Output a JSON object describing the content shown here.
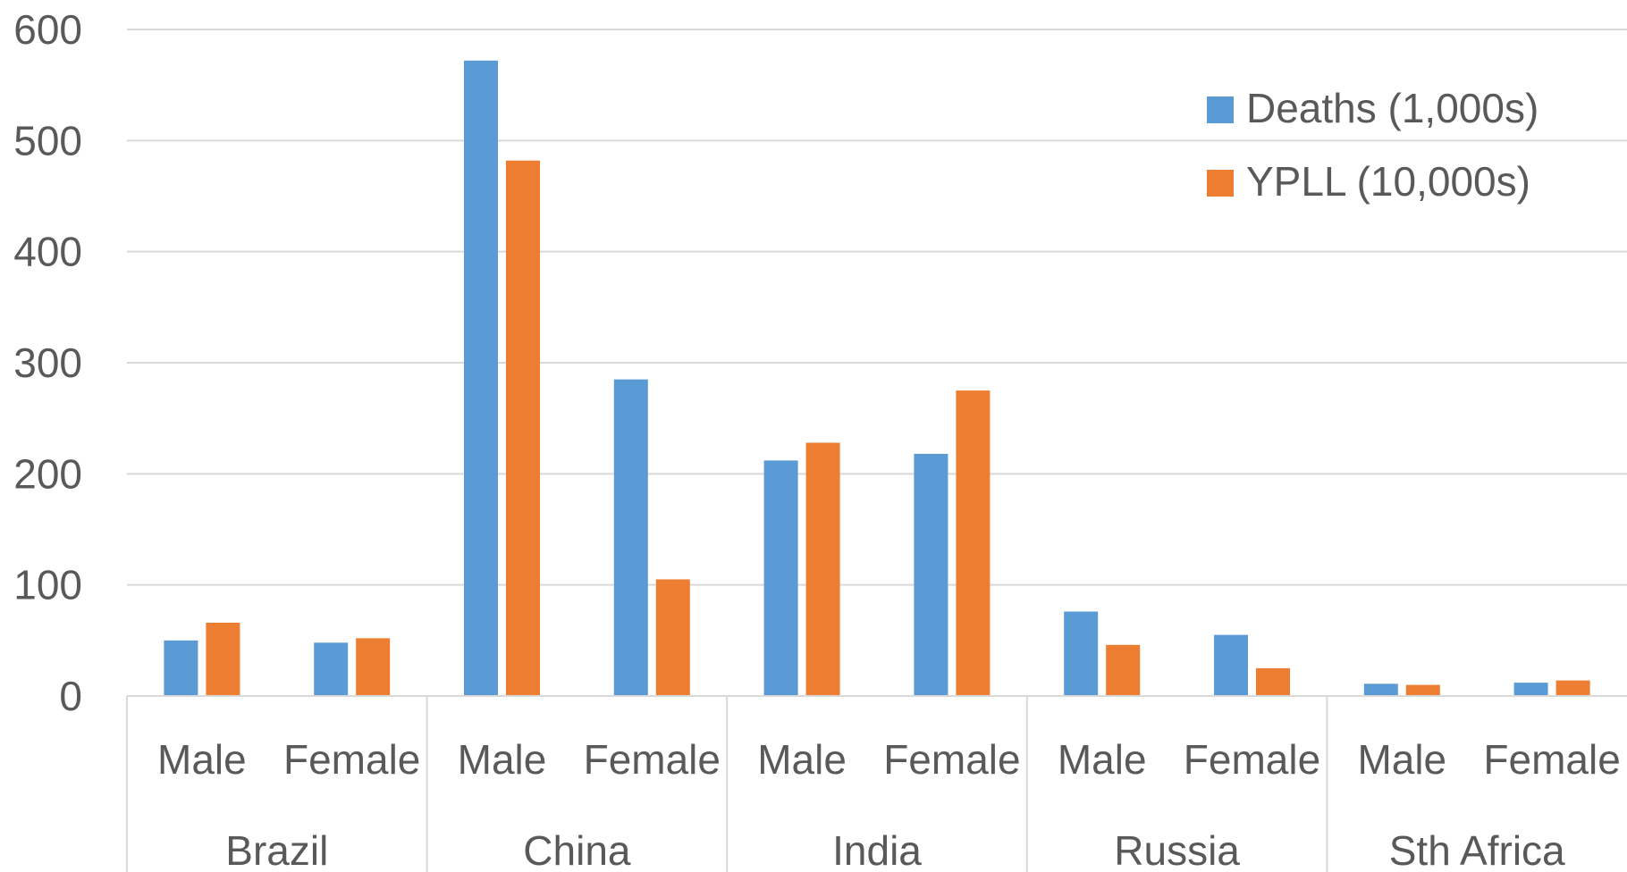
{
  "chart_data": {
    "type": "bar",
    "title": "",
    "xlabel": "",
    "ylabel": "",
    "ylim": [
      0,
      600
    ],
    "yticks": [
      "0",
      "100",
      "200",
      "300",
      "400",
      "500",
      "600"
    ],
    "ytick_values": [
      0,
      100,
      200,
      300,
      400,
      500,
      600
    ],
    "grid": true,
    "legend_position": "top-right",
    "groups": [
      "Brazil",
      "China",
      "India",
      "Russia",
      "Sth Africa"
    ],
    "categories": [
      "Male",
      "Female",
      "Male",
      "Female",
      "Male",
      "Female",
      "Male",
      "Female",
      "Male",
      "Female"
    ],
    "series": [
      {
        "name": "Deaths (1,000s)",
        "color": "#5B9BD5",
        "values": [
          50,
          48,
          572,
          285,
          212,
          218,
          76,
          55,
          11,
          12
        ]
      },
      {
        "name": "YPLL (10,000s)",
        "color": "#ED7D31",
        "values": [
          66,
          52,
          482,
          105,
          228,
          275,
          46,
          25,
          10,
          14
        ]
      }
    ]
  }
}
